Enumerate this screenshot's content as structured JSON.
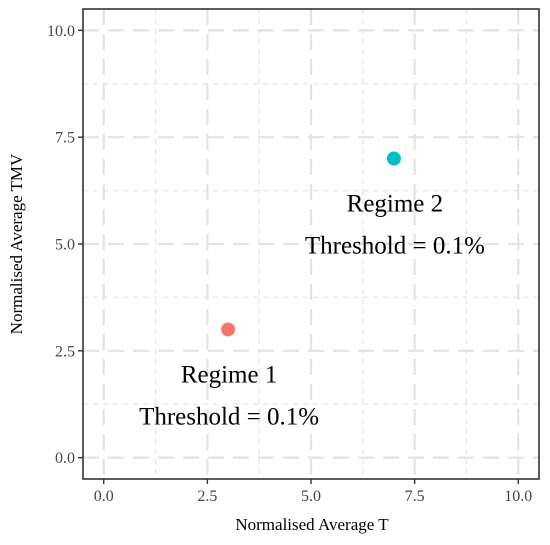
{
  "chart_data": {
    "type": "scatter",
    "xlabel": "Normalised Average T",
    "ylabel": "Normalised Average TMV",
    "xlim": [
      -0.5,
      10.5
    ],
    "ylim": [
      -0.5,
      10.5
    ],
    "x_ticks": [
      "0.0",
      "2.5",
      "5.0",
      "7.5",
      "10.0"
    ],
    "y_ticks": [
      "0.0",
      "2.5",
      "5.0",
      "7.5",
      "10.0"
    ],
    "grid": true,
    "legend": "none",
    "series": [
      {
        "x": [
          3
        ],
        "y": [
          3
        ],
        "color": "#F8766D",
        "annotation": [
          "Regime 1",
          "Threshold = 0.1%"
        ]
      },
      {
        "x": [
          7
        ],
        "y": [
          7
        ],
        "color": "#00BFC4",
        "annotation": [
          "Regime 2",
          "Threshold = 0.1%"
        ]
      }
    ]
  }
}
